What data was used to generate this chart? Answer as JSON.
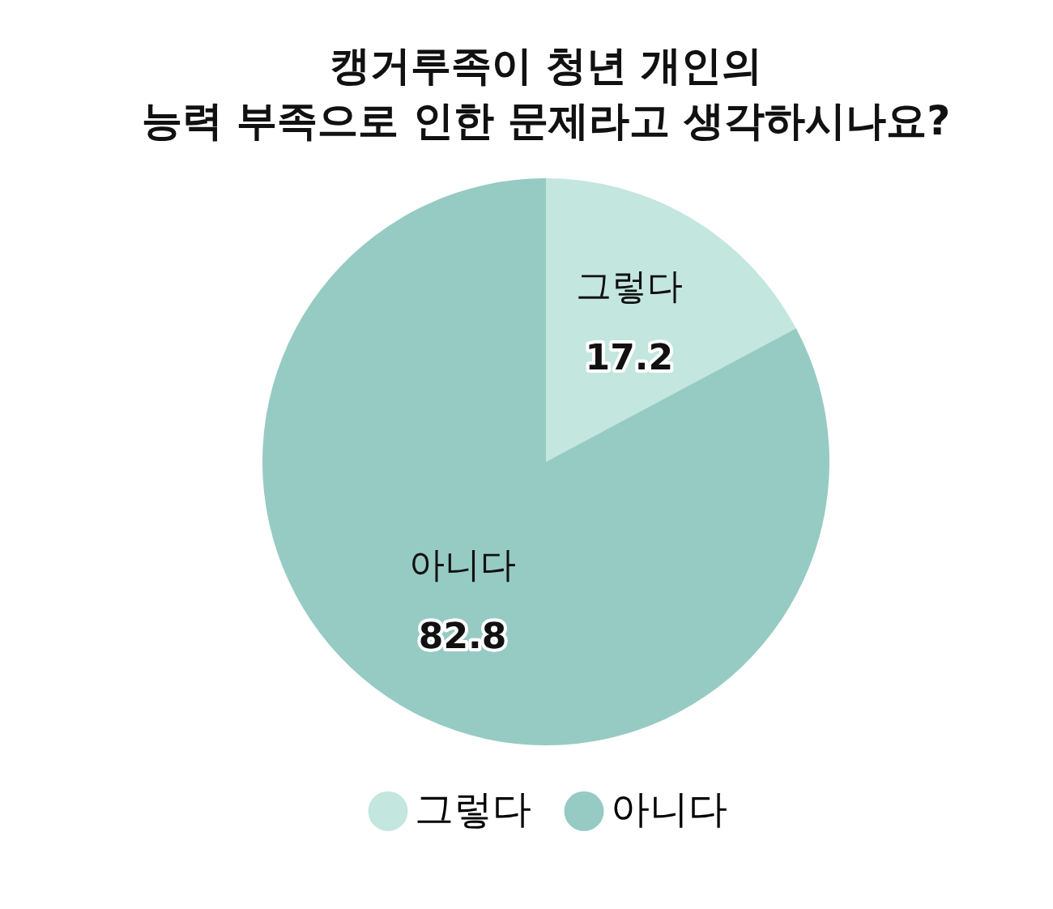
{
  "chart_data": {
    "type": "pie",
    "title": "캥거루족이 청년 개인의\n능력 부족으로 인한 문제라고 생각하시나요?",
    "categories": [
      "그렇다",
      "아니다"
    ],
    "values": [
      17.2,
      82.8
    ],
    "colors": [
      "#c3e6df",
      "#96cbc3"
    ],
    "data_labels": true,
    "legend": "bottom"
  }
}
